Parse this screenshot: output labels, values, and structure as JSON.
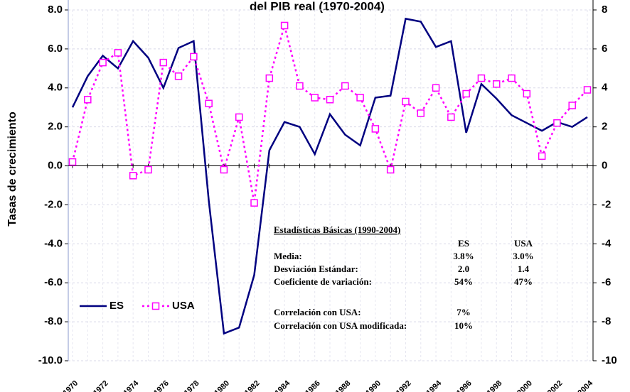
{
  "chart_data": {
    "type": "line",
    "title": "del PIB real (1970-2004)",
    "y_label": "Tasas de crecimiento",
    "categories": [
      "1970",
      null,
      "1972",
      null,
      "1974",
      null,
      "1976",
      null,
      "1978",
      null,
      "1980",
      null,
      "1982",
      null,
      "1984",
      null,
      "1986",
      null,
      "1988",
      null,
      "1990",
      null,
      "1992",
      null,
      "1994",
      null,
      "1996",
      null,
      "1998",
      null,
      "2000",
      null,
      "2002",
      null,
      "2004"
    ],
    "series": [
      {
        "name": "ES",
        "color": "#000080",
        "marker": "none",
        "dashed": false,
        "values": [
          3.0,
          4.6,
          5.65,
          5.0,
          6.4,
          5.55,
          4.0,
          6.05,
          6.4,
          -1.8,
          -8.6,
          -8.3,
          -5.6,
          0.8,
          2.25,
          2.0,
          0.6,
          2.65,
          1.6,
          1.05,
          3.5,
          3.6,
          7.55,
          7.4,
          6.1,
          6.4,
          1.7,
          4.2,
          3.45,
          2.6,
          2.2,
          1.8,
          2.25,
          2.0,
          2.5
        ]
      },
      {
        "name": "USA",
        "color": "#ff00ff",
        "marker": "square",
        "dashed": true,
        "values": [
          0.2,
          3.4,
          5.3,
          5.8,
          -0.5,
          -0.2,
          5.3,
          4.6,
          5.6,
          3.2,
          -0.2,
          2.5,
          -1.9,
          4.5,
          7.2,
          4.1,
          3.5,
          3.4,
          4.1,
          3.5,
          1.9,
          -0.2,
          3.3,
          2.7,
          4.0,
          2.5,
          3.7,
          4.5,
          4.2,
          4.5,
          3.7,
          0.5,
          2.2,
          3.1,
          3.9
        ]
      }
    ],
    "ylim": [
      -10,
      8
    ],
    "yticks": [
      {
        "value": 8,
        "label": "8.0"
      },
      {
        "value": 6,
        "label": "6.0"
      },
      {
        "value": 4,
        "label": "4.0"
      },
      {
        "value": 2,
        "label": "2.0"
      },
      {
        "value": 0,
        "label": "0.0"
      },
      {
        "value": -2,
        "label": "-2.0"
      },
      {
        "value": -4,
        "label": "-4.0"
      },
      {
        "value": -6,
        "label": "-6.0"
      },
      {
        "value": -8,
        "label": "-8.0"
      },
      {
        "value": -10,
        "label": "-10.0"
      }
    ],
    "y2lim": [
      -10,
      8
    ],
    "y2ticks": [
      8,
      6,
      4,
      2,
      0,
      -2,
      -4,
      -6,
      -8,
      -10
    ],
    "grid": true,
    "legend": "lower left",
    "stats_table": {
      "title": "Estadísticas Básicas (1990-2004)",
      "headers": [
        "ES",
        "USA"
      ],
      "rows": [
        [
          "Media:",
          "3.8%",
          "3.0%"
        ],
        [
          "Desviación Estándar:",
          "2.0",
          "1.4"
        ],
        [
          "Coeficiente de variación:",
          "54%",
          "47%"
        ]
      ],
      "extra_rows": [
        [
          "Correlación con USA:",
          "7%"
        ],
        [
          "Correlación con USA modificada:",
          "10%"
        ]
      ]
    }
  }
}
